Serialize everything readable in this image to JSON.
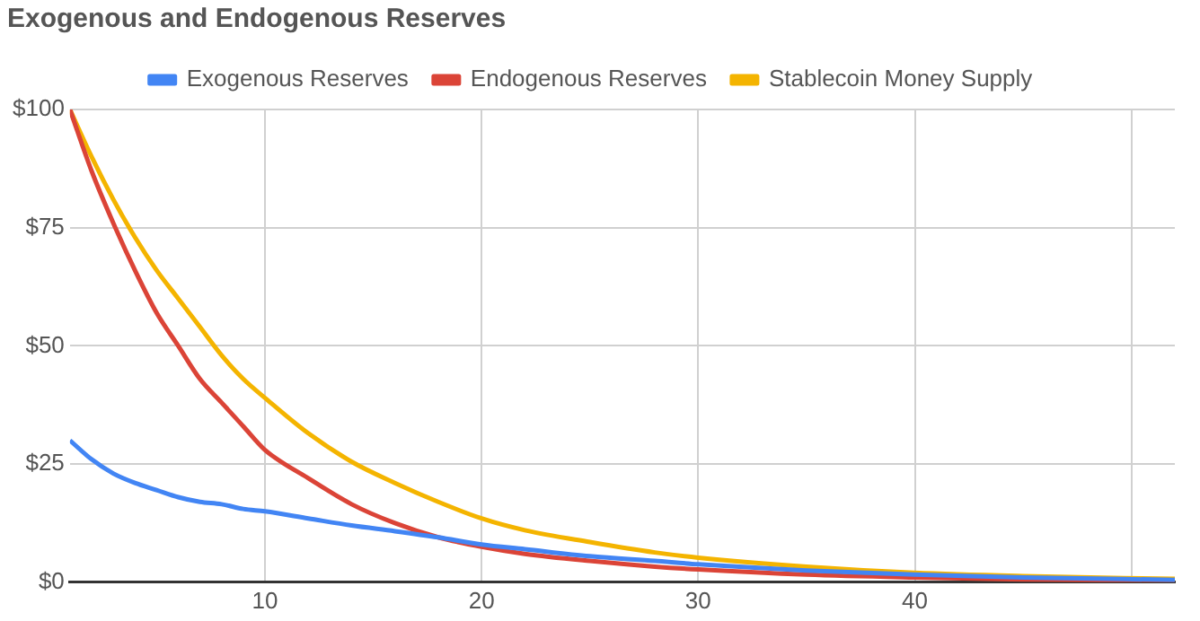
{
  "chart_data": {
    "type": "line",
    "title": "Exogenous and Endogenous Reserves",
    "x": [
      1,
      2,
      3,
      4,
      5,
      6,
      7,
      8,
      9,
      10,
      12,
      14,
      16,
      18,
      20,
      22,
      25,
      28,
      30,
      35,
      40,
      45,
      52
    ],
    "series": [
      {
        "name": "Exogenous Reserves",
        "color": "#4285f4",
        "values": [
          30,
          26,
          23,
          21,
          19.5,
          18,
          17,
          16.5,
          15.5,
          15,
          13.5,
          12,
          10.8,
          9.5,
          8,
          7,
          5.5,
          4.5,
          3.8,
          2.5,
          1.6,
          1,
          0.5
        ]
      },
      {
        "name": "Endogenous Reserves",
        "color": "#db4437",
        "values": [
          100,
          87,
          76,
          66,
          57,
          50,
          43,
          38,
          33,
          28,
          22,
          16.5,
          12.5,
          9.5,
          7.5,
          6,
          4.5,
          3.3,
          2.7,
          1.6,
          1,
          0.6,
          0.3
        ]
      },
      {
        "name": "Stablecoin Money Supply",
        "color": "#f4b400",
        "values": [
          100,
          90,
          81,
          73,
          66,
          60,
          54,
          48,
          43,
          39,
          31.5,
          25.5,
          21,
          17,
          13.5,
          11,
          8.5,
          6.3,
          5.2,
          3.3,
          2,
          1.3,
          0.7
        ]
      }
    ],
    "xlim": [
      1,
      52
    ],
    "xticks": [
      10,
      20,
      30,
      40,
      {
        "value": 50,
        "label": null
      }
    ],
    "ylim": [
      0,
      100
    ],
    "yticks": [
      {
        "value": 0,
        "label": "$0"
      },
      {
        "value": 25,
        "label": "$25"
      },
      {
        "value": 50,
        "label": "$50"
      },
      {
        "value": 75,
        "label": "$75"
      },
      {
        "value": 100,
        "label": "$100"
      }
    ],
    "grid": true,
    "legend": "top",
    "marker": "none",
    "line_style": "solid"
  }
}
